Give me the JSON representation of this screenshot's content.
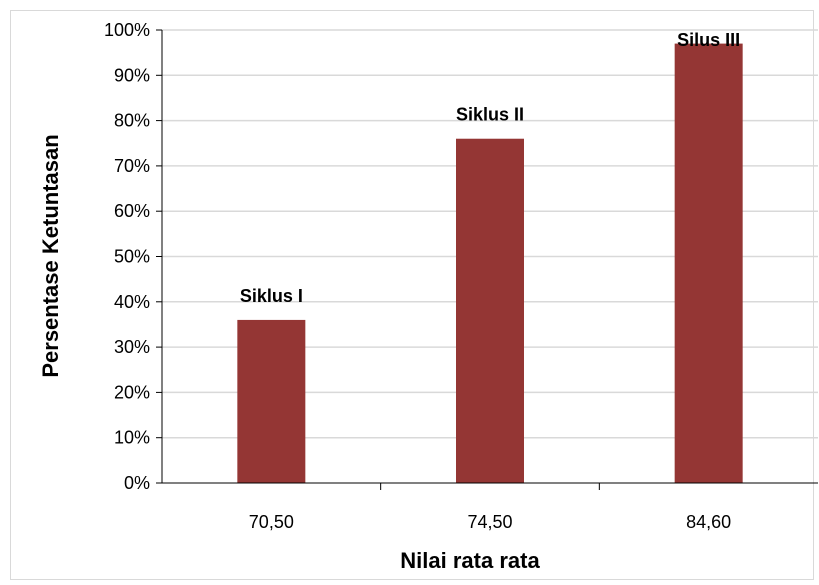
{
  "chart_data": {
    "type": "bar",
    "categories": [
      "70,50",
      "74,50",
      "84,60"
    ],
    "values": [
      0.36,
      0.76,
      0.97
    ],
    "data_labels": [
      "Siklus I",
      "Siklus II",
      "Silus III"
    ],
    "title": "",
    "xlabel": "Nilai rata rata",
    "ylabel": "Persentase Ketuntasan",
    "ylim": [
      0,
      1
    ],
    "y_ticks": [
      0,
      0.1,
      0.2,
      0.3,
      0.4,
      0.5,
      0.6,
      0.7,
      0.8,
      0.9,
      1.0
    ],
    "y_tick_labels": [
      "0%",
      "10%",
      "20%",
      "30%",
      "40%",
      "50%",
      "60%",
      "70%",
      "80%",
      "90%",
      "100%"
    ],
    "grid": true,
    "legend": "none",
    "colors": {
      "bar": "#943634",
      "grid": "#d9d9d9",
      "axis": "#000000"
    }
  }
}
